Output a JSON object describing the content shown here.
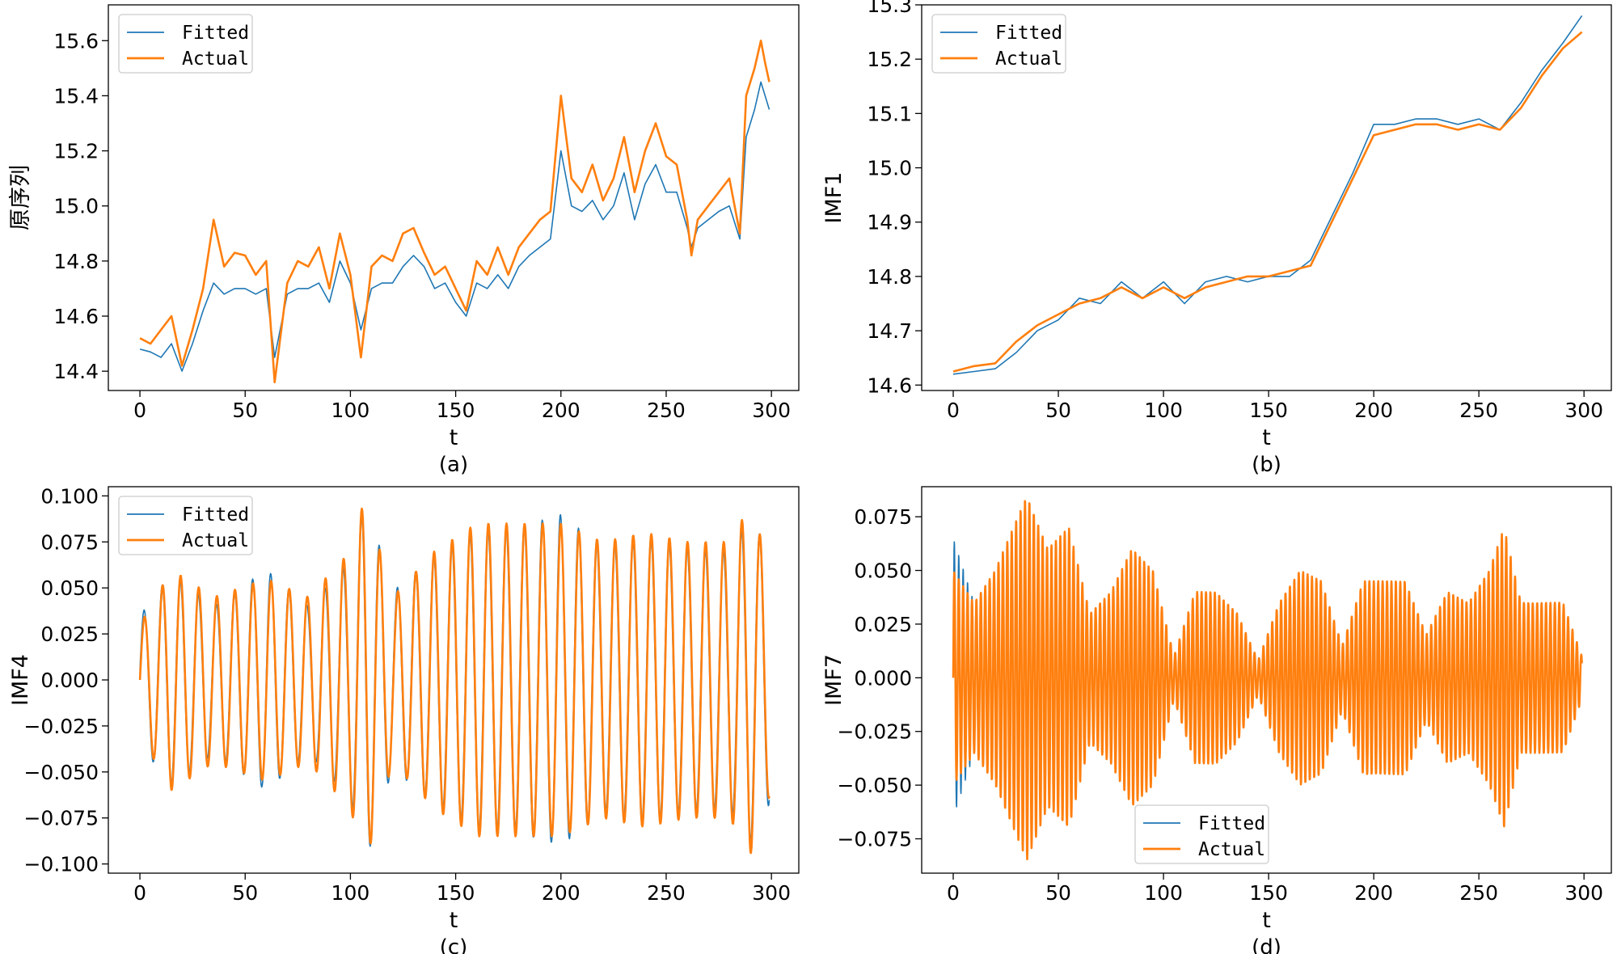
{
  "colors": {
    "fitted": "#1f77b4",
    "actual": "#ff7f0e",
    "axis": "#000000",
    "legend_border": "#cccccc"
  },
  "chart_data": [
    {
      "id": "a",
      "type": "line",
      "caption": "(a)",
      "xlabel": "t",
      "ylabel": "原序列",
      "xlim": [
        -15,
        313
      ],
      "ylim": [
        14.33,
        15.73
      ],
      "xticks": [
        0,
        50,
        100,
        150,
        200,
        250,
        300
      ],
      "yticks": [
        14.4,
        14.6,
        14.8,
        15.0,
        15.2,
        15.4,
        15.6
      ],
      "ytick_labels": [
        "14.4",
        "14.6",
        "14.8",
        "15.0",
        "15.2",
        "15.4",
        "15.6"
      ],
      "legend": {
        "placement": "upper-left",
        "entries": [
          "Fitted",
          "Actual"
        ]
      },
      "series": [
        {
          "name": "Actual",
          "color": "actual",
          "x": [
            0,
            5,
            10,
            15,
            20,
            25,
            30,
            35,
            40,
            45,
            50,
            55,
            60,
            64,
            70,
            75,
            80,
            85,
            90,
            95,
            100,
            105,
            110,
            115,
            120,
            125,
            130,
            135,
            140,
            145,
            150,
            155,
            160,
            165,
            170,
            175,
            180,
            185,
            190,
            195,
            200,
            205,
            210,
            215,
            220,
            225,
            230,
            235,
            240,
            245,
            250,
            255,
            260,
            262,
            265,
            270,
            275,
            280,
            285,
            288,
            292,
            295,
            297,
            299
          ],
          "y": [
            14.52,
            14.5,
            14.55,
            14.6,
            14.42,
            14.55,
            14.7,
            14.95,
            14.78,
            14.83,
            14.82,
            14.75,
            14.8,
            14.36,
            14.72,
            14.8,
            14.78,
            14.85,
            14.7,
            14.9,
            14.75,
            14.45,
            14.78,
            14.82,
            14.8,
            14.9,
            14.92,
            14.83,
            14.75,
            14.78,
            14.7,
            14.62,
            14.8,
            14.75,
            14.85,
            14.75,
            14.85,
            14.9,
            14.95,
            14.98,
            15.4,
            15.1,
            15.05,
            15.15,
            15.02,
            15.1,
            15.25,
            15.05,
            15.2,
            15.3,
            15.18,
            15.15,
            14.95,
            14.82,
            14.95,
            15.0,
            15.05,
            15.1,
            14.9,
            15.4,
            15.5,
            15.6,
            15.52,
            15.45
          ]
        },
        {
          "name": "Fitted",
          "color": "fitted",
          "x": [
            0,
            5,
            10,
            15,
            20,
            25,
            30,
            35,
            40,
            45,
            50,
            55,
            60,
            64,
            70,
            75,
            80,
            85,
            90,
            95,
            100,
            105,
            110,
            115,
            120,
            125,
            130,
            135,
            140,
            145,
            150,
            155,
            160,
            165,
            170,
            175,
            180,
            185,
            190,
            195,
            200,
            205,
            210,
            215,
            220,
            225,
            230,
            235,
            240,
            245,
            250,
            255,
            260,
            262,
            265,
            270,
            275,
            280,
            285,
            288,
            292,
            295,
            297,
            299
          ],
          "y": [
            14.48,
            14.47,
            14.45,
            14.5,
            14.4,
            14.5,
            14.62,
            14.72,
            14.68,
            14.7,
            14.7,
            14.68,
            14.7,
            14.45,
            14.68,
            14.7,
            14.7,
            14.72,
            14.65,
            14.8,
            14.72,
            14.55,
            14.7,
            14.72,
            14.72,
            14.78,
            14.82,
            14.78,
            14.7,
            14.72,
            14.65,
            14.6,
            14.72,
            14.7,
            14.75,
            14.7,
            14.78,
            14.82,
            14.85,
            14.88,
            15.2,
            15.0,
            14.98,
            15.02,
            14.95,
            15.0,
            15.12,
            14.95,
            15.08,
            15.15,
            15.05,
            15.05,
            14.92,
            14.85,
            14.92,
            14.95,
            14.98,
            15.0,
            14.88,
            15.25,
            15.35,
            15.45,
            15.4,
            15.35
          ]
        }
      ]
    },
    {
      "id": "b",
      "type": "line",
      "caption": "(b)",
      "xlabel": "t",
      "ylabel": "IMF1",
      "xlim": [
        -15,
        313
      ],
      "ylim": [
        14.59,
        15.3
      ],
      "xticks": [
        0,
        50,
        100,
        150,
        200,
        250,
        300
      ],
      "yticks": [
        14.6,
        14.7,
        14.8,
        14.9,
        15.0,
        15.1,
        15.2,
        15.3
      ],
      "ytick_labels": [
        "14.6",
        "14.7",
        "14.8",
        "14.9",
        "15.0",
        "15.1",
        "15.2",
        "15.3"
      ],
      "legend": {
        "placement": "upper-left",
        "entries": [
          "Fitted",
          "Actual"
        ]
      },
      "series": [
        {
          "name": "Actual",
          "color": "actual",
          "x": [
            0,
            10,
            20,
            30,
            40,
            50,
            60,
            70,
            80,
            90,
            100,
            110,
            120,
            130,
            140,
            150,
            160,
            170,
            180,
            190,
            200,
            210,
            220,
            230,
            240,
            250,
            260,
            270,
            280,
            290,
            299
          ],
          "y": [
            14.625,
            14.635,
            14.64,
            14.68,
            14.71,
            14.73,
            14.75,
            14.76,
            14.78,
            14.76,
            14.78,
            14.76,
            14.78,
            14.79,
            14.8,
            14.8,
            14.81,
            14.82,
            14.9,
            14.98,
            15.06,
            15.07,
            15.08,
            15.08,
            15.07,
            15.08,
            15.07,
            15.11,
            15.17,
            15.22,
            15.25
          ]
        },
        {
          "name": "Fitted",
          "color": "fitted",
          "x": [
            0,
            10,
            20,
            30,
            40,
            50,
            60,
            70,
            80,
            90,
            100,
            110,
            120,
            130,
            140,
            150,
            160,
            170,
            180,
            190,
            200,
            210,
            220,
            230,
            240,
            250,
            260,
            270,
            280,
            290,
            299
          ],
          "y": [
            14.62,
            14.625,
            14.63,
            14.66,
            14.7,
            14.72,
            14.76,
            14.75,
            14.79,
            14.76,
            14.79,
            14.75,
            14.79,
            14.8,
            14.79,
            14.8,
            14.8,
            14.83,
            14.91,
            14.99,
            15.08,
            15.08,
            15.09,
            15.09,
            15.08,
            15.09,
            15.07,
            15.12,
            15.18,
            15.23,
            15.28
          ]
        }
      ]
    },
    {
      "id": "c",
      "type": "line",
      "caption": "(c)",
      "xlabel": "t",
      "ylabel": "IMF4",
      "xlim": [
        -15,
        313
      ],
      "ylim": [
        -0.105,
        0.105
      ],
      "xticks": [
        0,
        50,
        100,
        150,
        200,
        250,
        300
      ],
      "yticks": [
        -0.1,
        -0.075,
        -0.05,
        -0.025,
        0.0,
        0.025,
        0.05,
        0.075,
        0.1
      ],
      "ytick_labels": [
        "−0.100",
        "−0.075",
        "−0.050",
        "−0.025",
        "0.000",
        "0.025",
        "0.050",
        "0.075",
        "0.100"
      ],
      "legend": {
        "placement": "upper-left",
        "entries": [
          "Fitted",
          "Actual"
        ]
      },
      "series": [
        {
          "name": "Actual",
          "color": "actual",
          "amplitude_envelope": {
            "t": [
              0,
              15,
              35,
              60,
              80,
              100,
              107,
              120,
              140,
              160,
              180,
              200,
              220,
              240,
              260,
              280,
              290,
              300
            ],
            "a": [
              0.03,
              0.06,
              0.045,
              0.055,
              0.045,
              0.07,
              0.1,
              0.045,
              0.07,
              0.085,
              0.085,
              0.085,
              0.075,
              0.08,
              0.075,
              0.075,
              0.095,
              0.06
            ]
          }
        },
        {
          "name": "Fitted",
          "color": "fitted",
          "amplitude_envelope": {
            "t": [
              0,
              15,
              35,
              60,
              80,
              100,
              107,
              120,
              140,
              160,
              180,
              200,
              220,
              240,
              260,
              280,
              290,
              300
            ],
            "a": [
              0.035,
              0.058,
              0.04,
              0.06,
              0.04,
              0.065,
              0.1,
              0.048,
              0.068,
              0.082,
              0.083,
              0.09,
              0.072,
              0.078,
              0.072,
              0.07,
              0.09,
              0.065
            ]
          }
        }
      ]
    },
    {
      "id": "d",
      "type": "line",
      "caption": "(d)",
      "xlabel": "t",
      "ylabel": "IMF7",
      "xlim": [
        -15,
        313
      ],
      "ylim": [
        -0.091,
        0.089
      ],
      "xticks": [
        0,
        50,
        100,
        150,
        200,
        250,
        300
      ],
      "yticks": [
        -0.075,
        -0.05,
        -0.025,
        0.0,
        0.025,
        0.05,
        0.075
      ],
      "ytick_labels": [
        "−0.075",
        "−0.050",
        "−0.025",
        "0.000",
        "0.025",
        "0.050",
        "0.075"
      ],
      "legend": {
        "placement": "lower-center",
        "entries": [
          "Fitted",
          "Actual"
        ]
      },
      "series": [
        {
          "name": "Actual",
          "color": "actual",
          "amplitude_envelope": {
            "t": [
              0,
              10,
              20,
              35,
              45,
              55,
              65,
              75,
              85,
              95,
              105,
              115,
              125,
              135,
              145,
              155,
              165,
              175,
              185,
              195,
              205,
              215,
              225,
              235,
              245,
              255,
              262,
              270,
              280,
              290,
              299
            ],
            "a": [
              0.05,
              0.035,
              0.05,
              0.085,
              0.06,
              0.07,
              0.03,
              0.04,
              0.06,
              0.05,
              0.01,
              0.04,
              0.04,
              0.03,
              0.008,
              0.035,
              0.05,
              0.045,
              0.015,
              0.045,
              0.045,
              0.045,
              0.02,
              0.04,
              0.035,
              0.05,
              0.07,
              0.035,
              0.035,
              0.035,
              0.01
            ]
          }
        },
        {
          "name": "Fitted",
          "color": "fitted",
          "amplitude_envelope": {
            "t": [
              0,
              10,
              20,
              35,
              45,
              55,
              65,
              75,
              85,
              95,
              105,
              115,
              125,
              135,
              145,
              155,
              165,
              175,
              185,
              195,
              205,
              215,
              225,
              235,
              245,
              255,
              262,
              270,
              280,
              290,
              299
            ],
            "a": [
              0.065,
              0.035,
              0.05,
              0.083,
              0.06,
              0.07,
              0.03,
              0.04,
              0.06,
              0.05,
              0.01,
              0.04,
              0.04,
              0.03,
              0.008,
              0.035,
              0.05,
              0.045,
              0.015,
              0.045,
              0.045,
              0.045,
              0.02,
              0.04,
              0.035,
              0.05,
              0.07,
              0.035,
              0.035,
              0.035,
              0.01
            ]
          }
        }
      ]
    }
  ]
}
